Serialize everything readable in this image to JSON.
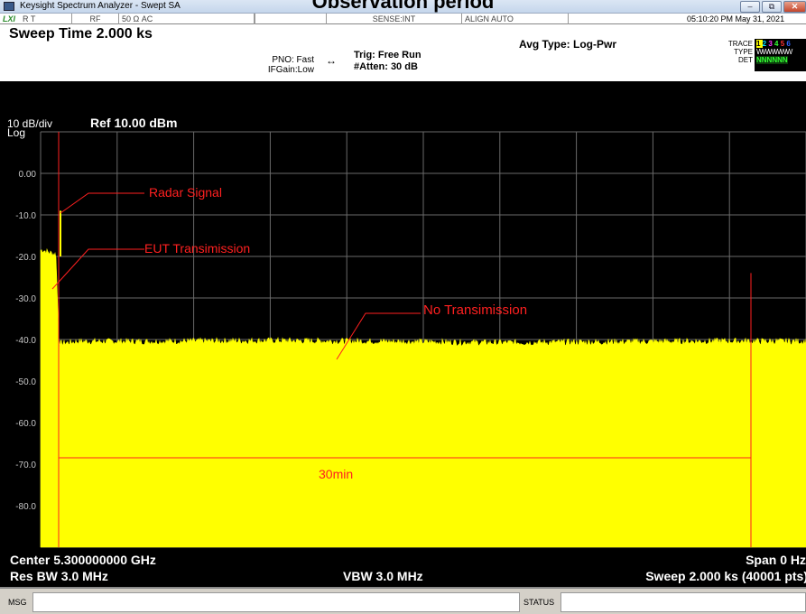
{
  "caption": "Observation period",
  "window": {
    "title": "Keysight Spectrum Analyzer - Swept SA",
    "buttons": [
      "–",
      "⧉",
      "✕"
    ]
  },
  "status_bar": {
    "lxi": "LXI",
    "rt": "R  T",
    "rf": "RF",
    "impedance": "50 Ω   AC",
    "sense": "SENSE:INT",
    "align": "ALIGN AUTO",
    "datetime": "05:10:20 PM May 31, 2021"
  },
  "header": {
    "sweep_time": "Sweep Time 2.000 ks",
    "pno": "PNO: Fast",
    "ifgain": "IFGain:Low",
    "trig": "Trig: Free Run",
    "atten": "#Atten: 30 dB",
    "avg_type": "Avg Type: Log-Pwr",
    "trace_label": "TRACE",
    "trace_digits": [
      "1",
      "2",
      "3",
      "4",
      "5",
      "6"
    ],
    "trace_colors": [
      "#ffff00",
      "#00e5ff",
      "#ff33ff",
      "#33ff33",
      "#ff3333",
      "#3366ff"
    ],
    "type_label": "TYPE",
    "type_value": "WWWWWW",
    "det_label": "DET",
    "det_value": "NNNNNN"
  },
  "display": {
    "scale": "10 dB/div",
    "log": "Log",
    "ref": "Ref 10.00 dBm",
    "y_labels": [
      "0.00",
      "-10.0",
      "-20.0",
      "-30.0",
      "-40.0",
      "-50.0",
      "-60.0",
      "-70.0",
      "-80.0"
    ]
  },
  "annotations": {
    "radar": "Radar Signal",
    "eut": "EUT Transimission",
    "no_tx": "No Transimission",
    "duration": "30min"
  },
  "footer": {
    "center": "Center 5.300000000 GHz",
    "span": "Span 0 Hz",
    "rbw": "Res BW 3.0 MHz",
    "vbw": "VBW 3.0 MHz",
    "sweep": "Sweep  2.000 ks (40001 pts)"
  },
  "msgbar": {
    "msg": "MSG",
    "status": "STATUS"
  },
  "chart_data": {
    "type": "line",
    "ylabel": "dBm",
    "ylim": [
      -90,
      10
    ],
    "xlim": [
      0,
      2000
    ],
    "grid": true,
    "series": [
      {
        "name": "",
        "points": [
          [
            0,
            -18.5
          ],
          [
            7,
            -18.5
          ],
          [
            20,
            -19
          ],
          [
            40,
            -19.5
          ],
          [
            48,
            -41
          ],
          [
            100,
            -40.5
          ],
          [
            300,
            -40.5
          ],
          [
            600,
            -40.3
          ],
          [
            900,
            -40.5
          ],
          [
            1200,
            -40.8
          ],
          [
            1500,
            -40.6
          ],
          [
            1800,
            -40.4
          ],
          [
            2000,
            -40.5
          ]
        ]
      }
    ],
    "colors": {
      "trace": "#ffff00",
      "annotation": "#ff2020",
      "grid": "#6a6a6a"
    }
  }
}
